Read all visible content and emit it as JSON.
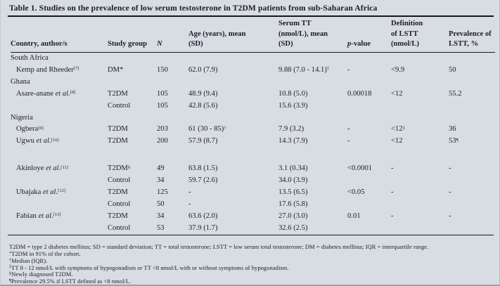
{
  "colors": {
    "background": "#d8dce3",
    "text": "#1d1d27",
    "rule": "#16161f"
  },
  "title": "Table 1. Studies on the prevalence of low serum testosterone in T2DM patients from sub-Saharan Africa",
  "table": {
    "header": [
      {
        "lines": [
          [
            [
              "Country, author/s",
              "n"
            ]
          ]
        ]
      },
      {
        "lines": [
          [
            [
              "Study group",
              "n"
            ]
          ]
        ]
      },
      {
        "lines": [
          [
            [
              "N",
              "i"
            ]
          ]
        ]
      },
      {
        "lines": [
          [
            [
              "Age (years), mean",
              "n"
            ]
          ],
          [
            [
              "(SD)",
              "n"
            ]
          ]
        ]
      },
      {
        "lines": [
          [
            [
              "Serum TT",
              "n"
            ]
          ],
          [
            [
              "(nmol/L), mean",
              "n"
            ]
          ],
          [
            [
              "(SD)",
              "n"
            ]
          ]
        ]
      },
      {
        "lines": [
          [
            [
              "p",
              "i"
            ],
            [
              "-value",
              "n"
            ]
          ]
        ]
      },
      {
        "lines": [
          [
            [
              "Definition",
              "n"
            ]
          ],
          [
            [
              "of LSTT",
              "n"
            ]
          ],
          [
            [
              "(nmol/L)",
              "n"
            ]
          ]
        ]
      },
      {
        "lines": [
          [
            [
              "Prevalence of",
              "n"
            ]
          ],
          [
            [
              "LSTT, %",
              "n"
            ]
          ]
        ]
      }
    ],
    "rows": [
      {
        "type": "section",
        "cells": [
          [
            [
              "South Africa",
              "n"
            ]
          ],
          [],
          [],
          [],
          [],
          [],
          [],
          []
        ]
      },
      {
        "type": "data",
        "cells": [
          [
            [
              "Kemp and Rheeder",
              "n"
            ],
            [
              "[7]",
              "s"
            ]
          ],
          [
            [
              "DM*",
              "n"
            ]
          ],
          [
            [
              "150",
              "n"
            ]
          ],
          [
            [
              "62.0 (7.9)",
              "n"
            ]
          ],
          [
            [
              "9.88 (7.0 - 14.1)",
              "n"
            ],
            [
              "†",
              "s"
            ]
          ],
          [
            [
              "-",
              "n"
            ]
          ],
          [
            [
              "<9.9",
              "n"
            ]
          ],
          [
            [
              "50",
              "n"
            ]
          ]
        ]
      },
      {
        "type": "section",
        "cells": [
          [
            [
              "Ghana",
              "n"
            ]
          ],
          [],
          [],
          [],
          [],
          [],
          [],
          []
        ]
      },
      {
        "type": "data",
        "cells": [
          [
            [
              "Asare-anane ",
              "n"
            ],
            [
              "et al.",
              "i"
            ],
            [
              "[8]",
              "s"
            ]
          ],
          [
            [
              "T2DM",
              "n"
            ]
          ],
          [
            [
              "105",
              "n"
            ]
          ],
          [
            [
              "48.9 (9.4)",
              "n"
            ]
          ],
          [
            [
              "10.8 (5.0)",
              "n"
            ]
          ],
          [
            [
              "0.00018",
              "n"
            ]
          ],
          [
            [
              "<12",
              "n"
            ]
          ],
          [
            [
              "55.2",
              "n"
            ]
          ]
        ]
      },
      {
        "type": "data",
        "cells": [
          [],
          [
            [
              "Control",
              "n"
            ]
          ],
          [
            [
              "105",
              "n"
            ]
          ],
          [
            [
              "42.8 (5.6)",
              "n"
            ]
          ],
          [
            [
              "15.6 (3.9)",
              "n"
            ]
          ],
          [],
          [],
          []
        ]
      },
      {
        "type": "section",
        "cells": [
          [
            [
              "Nigeria",
              "n"
            ]
          ],
          [],
          [],
          [],
          [],
          [],
          [],
          []
        ]
      },
      {
        "type": "data",
        "cells": [
          [
            [
              "Ogbera",
              "n"
            ],
            [
              "[9]",
              "s"
            ]
          ],
          [
            [
              "T2DM",
              "n"
            ]
          ],
          [
            [
              "203",
              "n"
            ]
          ],
          [
            [
              "61 (30 - 85)",
              "n"
            ],
            [
              "†",
              "s"
            ]
          ],
          [
            [
              "7.9 (3.2)",
              "n"
            ]
          ],
          [
            [
              "-",
              "n"
            ]
          ],
          [
            [
              "<12",
              "n"
            ],
            [
              "‡",
              "s"
            ]
          ],
          [
            [
              "36",
              "n"
            ]
          ]
        ]
      },
      {
        "type": "data",
        "cells": [
          [
            [
              "Ugwu ",
              "n"
            ],
            [
              "et al.",
              "i"
            ],
            [
              "[10]",
              "s"
            ]
          ],
          [
            [
              "T2DM",
              "n"
            ]
          ],
          [
            [
              "200",
              "n"
            ]
          ],
          [
            [
              "57.9 (8.7)",
              "n"
            ]
          ],
          [
            [
              "14.3 (7.9)",
              "n"
            ]
          ],
          [
            [
              "-",
              "n"
            ]
          ],
          [
            [
              "<12",
              "n"
            ]
          ],
          [
            [
              "53",
              "n"
            ],
            [
              "¶",
              "s"
            ]
          ]
        ]
      },
      {
        "type": "blank",
        "cells": [
          [],
          [],
          [],
          [],
          [],
          [],
          [],
          []
        ]
      },
      {
        "type": "data",
        "cells": [
          [
            [
              "Akinloye ",
              "n"
            ],
            [
              "et al.",
              "i"
            ],
            [
              "[11]",
              "s"
            ]
          ],
          [
            [
              "T2DM",
              "n"
            ],
            [
              "§",
              "s"
            ]
          ],
          [
            [
              "49",
              "n"
            ]
          ],
          [
            [
              "63.8 (1.5)",
              "n"
            ]
          ],
          [
            [
              "3.1 (0.34)",
              "n"
            ]
          ],
          [
            [
              "<0.0001",
              "n"
            ]
          ],
          [
            [
              "-",
              "n"
            ]
          ],
          [
            [
              "-",
              "n"
            ]
          ]
        ]
      },
      {
        "type": "data",
        "cells": [
          [],
          [
            [
              "Control",
              "n"
            ]
          ],
          [
            [
              "34",
              "n"
            ]
          ],
          [
            [
              "59.7 (2.6)",
              "n"
            ]
          ],
          [
            [
              "34.0 (3.9)",
              "n"
            ]
          ],
          [],
          [],
          []
        ]
      },
      {
        "type": "data",
        "cells": [
          [
            [
              "Ubajaka ",
              "n"
            ],
            [
              "et al.",
              "i"
            ],
            [
              "[12]",
              "s"
            ]
          ],
          [
            [
              "T2DM",
              "n"
            ]
          ],
          [
            [
              "125",
              "n"
            ]
          ],
          [
            [
              "-",
              "n"
            ]
          ],
          [
            [
              "13.5 (6.5)",
              "n"
            ]
          ],
          [
            [
              "<0.05",
              "n"
            ]
          ],
          [
            [
              "-",
              "n"
            ]
          ],
          [
            [
              "-",
              "n"
            ]
          ]
        ]
      },
      {
        "type": "data",
        "cells": [
          [],
          [
            [
              "Control",
              "n"
            ]
          ],
          [
            [
              "50",
              "n"
            ]
          ],
          [
            [
              "-",
              "n"
            ]
          ],
          [
            [
              "17.6 (5.8)",
              "n"
            ]
          ],
          [],
          [],
          []
        ]
      },
      {
        "type": "data",
        "cells": [
          [
            [
              "Fabian ",
              "n"
            ],
            [
              "et al.",
              "i"
            ],
            [
              "[13]",
              "s"
            ]
          ],
          [
            [
              "T2DM",
              "n"
            ]
          ],
          [
            [
              "34",
              "n"
            ]
          ],
          [
            [
              "63.6 (2.0)",
              "n"
            ]
          ],
          [
            [
              "27.0 (3.0)",
              "n"
            ]
          ],
          [
            [
              "0.01",
              "n"
            ]
          ],
          [
            [
              "-",
              "n"
            ]
          ],
          [
            [
              "-",
              "n"
            ]
          ]
        ]
      },
      {
        "type": "data",
        "cells": [
          [],
          [
            [
              "Control",
              "n"
            ]
          ],
          [
            [
              "53",
              "n"
            ]
          ],
          [
            [
              "37.9 (1.7)",
              "n"
            ]
          ],
          [
            [
              "32.6 (2.5)",
              "n"
            ]
          ],
          [],
          [],
          []
        ]
      }
    ]
  },
  "footnotes": [
    {
      "marker": "",
      "text": "T2DM = type 2 diabetes mellitus; SD = standard deviation; TT = total testosterone; LSTT = low serum total testosterone; DM = diabetes mellitus; IQR = interquartile range."
    },
    {
      "marker": "*",
      "text": "T2DM in 91% of the cohort."
    },
    {
      "marker": "†",
      "text": "Median (IQR)."
    },
    {
      "marker": "‡",
      "text": "TT 8 - 12 nmol/L with symptoms of hypogonadism or TT <8 nmol/L with or without symptoms of hypogonadism."
    },
    {
      "marker": "§",
      "text": "Newly diagnosed T2DM."
    },
    {
      "marker": "¶",
      "text": "Prevalence 29.5% if LSTT defined as <8 nmol/L."
    }
  ]
}
